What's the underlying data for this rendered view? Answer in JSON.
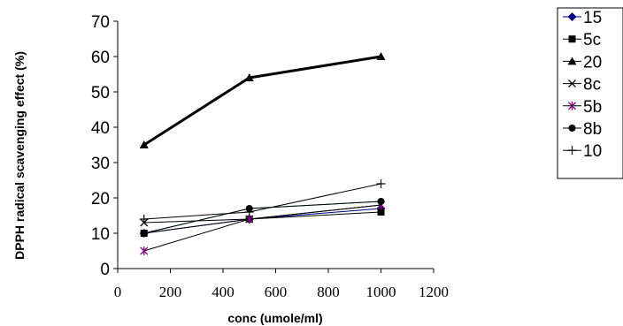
{
  "chart_data": {
    "type": "line",
    "xlabel": "conc (umole/ml)",
    "ylabel": "DPPH radical scavenging effect (%)",
    "xlim": [
      0,
      1200
    ],
    "ylim": [
      0,
      70
    ],
    "x_ticks": [
      "0",
      "200",
      "400",
      "600",
      "800",
      "1000",
      "1200"
    ],
    "y_ticks": [
      "0",
      "10",
      "20",
      "30",
      "40",
      "50",
      "60",
      "70"
    ],
    "grid": false,
    "legend_position": "top-right",
    "x": [
      100,
      500,
      1000
    ],
    "series": [
      {
        "name": "15",
        "values": [
          10,
          14,
          17
        ],
        "marker": "diamond",
        "color": "#000080",
        "marker_color": "#000080"
      },
      {
        "name": "5c",
        "values": [
          10,
          14,
          16
        ],
        "marker": "square",
        "color": "#000000",
        "marker_color": "#000000"
      },
      {
        "name": "20",
        "values": [
          35,
          54,
          60
        ],
        "marker": "triangle",
        "color": "#000000",
        "marker_color": "#000000",
        "thick": true
      },
      {
        "name": "8c",
        "values": [
          13,
          14,
          18
        ],
        "marker": "x",
        "color": "#000000",
        "marker_color": "#000000"
      },
      {
        "name": "5b",
        "values": [
          5,
          14,
          18
        ],
        "marker": "star",
        "color": "#000000",
        "marker_color": "#800080"
      },
      {
        "name": "8b",
        "values": [
          10,
          17,
          19
        ],
        "marker": "circle",
        "color": "#000000",
        "marker_color": "#000000"
      },
      {
        "name": "10",
        "values": [
          14,
          16,
          24
        ],
        "marker": "plus",
        "color": "#000000",
        "marker_color": "#000000"
      }
    ],
    "extra_lines": [
      {
        "x": [
          100,
          500,
          1000
        ],
        "values": [
          10,
          17,
          19
        ],
        "color": "#008080"
      }
    ]
  }
}
